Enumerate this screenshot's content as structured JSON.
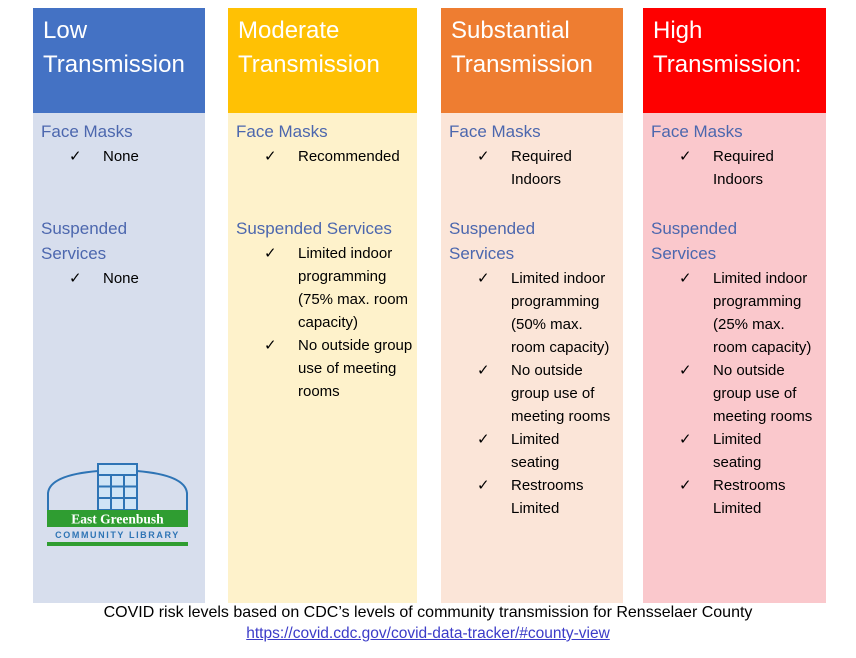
{
  "labels": {
    "face_masks_heading": "Face Masks",
    "suspended_heading": "Suspended Services",
    "check_glyph": "✓"
  },
  "columns": [
    {
      "id": "low",
      "title": "Low Transmission",
      "header_color": "#4472C4",
      "body_color": "#D7DEED",
      "face_masks": [
        "None"
      ],
      "suspended_services": [
        "None"
      ],
      "show_logo": true
    },
    {
      "id": "moderate",
      "title": "Moderate Transmission",
      "header_color": "#FFC104",
      "body_color": "#FEF2CB",
      "face_masks": [
        "Recommended"
      ],
      "suspended_services": [
        "Limited indoor programming (75% max. room capacity)",
        "No outside group use of meeting rooms"
      ],
      "show_logo": false
    },
    {
      "id": "substantial",
      "title": "Substantial Transmission",
      "header_color": "#EE7D31",
      "body_color": "#FBE5D8",
      "face_masks": [
        "Required Indoors"
      ],
      "suspended_services": [
        "Limited indoor programming (50% max. room capacity)",
        "No outside group use of meeting rooms",
        "Limited seating",
        "Restrooms Limited"
      ],
      "show_logo": false
    },
    {
      "id": "high",
      "title": "High Transmission:",
      "header_color": "#FE0000",
      "body_color": "#FAC8CC",
      "face_masks": [
        "Required Indoors"
      ],
      "suspended_services": [
        "Limited indoor programming (25% max. room capacity)",
        "No outside group use of meeting rooms",
        "Limited seating",
        "Restrooms Limited"
      ],
      "show_logo": false
    }
  ],
  "logo": {
    "banner_text": "East Greenbush",
    "subtitle": "COMMUNITY LIBRARY",
    "green": "#2F9D31",
    "blue": "#2E74B5",
    "window_fill": "#CFE4F6",
    "banner_text_color": "#FFFFFF"
  },
  "footer": {
    "caption": "COVID risk levels based on CDC’s levels of community transmission for Rensselaer County",
    "link_text": "https://covid.cdc.gov/covid-data-tracker/#county-view",
    "link_color": "#3B3BC8"
  },
  "text_colors": {
    "section_heading": "#4C67AE",
    "bullet": "#000000",
    "header_text": "#FFFFFF"
  }
}
